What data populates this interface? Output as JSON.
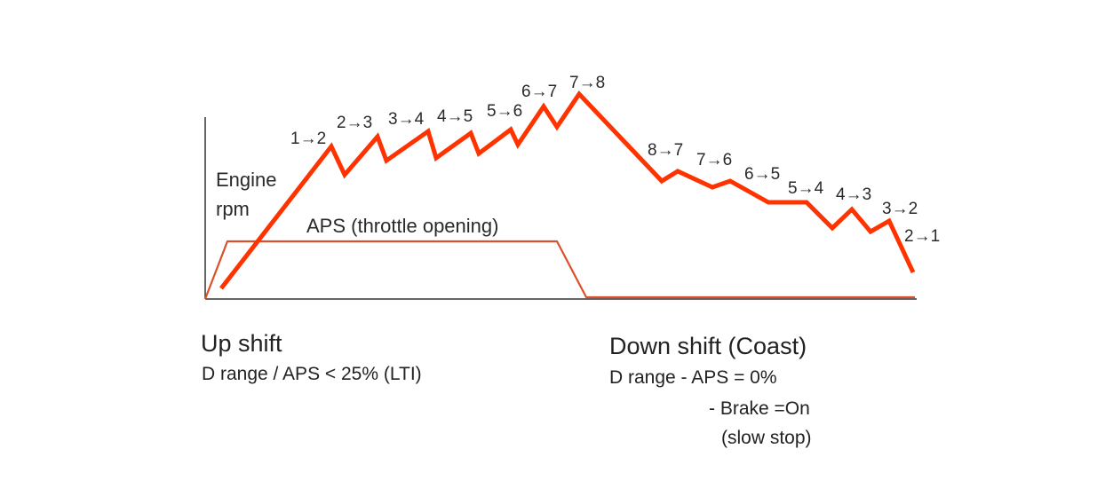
{
  "diagram": {
    "axis_label_line1": "Engine",
    "axis_label_line2": "rpm",
    "aps_label": "APS (throttle opening)",
    "shift_labels": [
      "1→2",
      "2→3",
      "3→4",
      "4→5",
      "5→6",
      "6→7",
      "7→8",
      "8→7",
      "7→6",
      "6→5",
      "5→4",
      "4→3",
      "3→2",
      "2→1"
    ],
    "colors": {
      "rpm_line": "#ff3300",
      "aps_line": "#d9502a",
      "axis": "#333333",
      "text": "#2a2a2a"
    }
  },
  "captions": {
    "upshift": {
      "title": "Up shift",
      "line1": "D range / APS < 25% (LTI)"
    },
    "downshift": {
      "title": "Down shift (Coast)",
      "line1": "D range  -  APS = 0%",
      "line2": "-  Brake =On",
      "line3": "(slow stop)"
    }
  }
}
